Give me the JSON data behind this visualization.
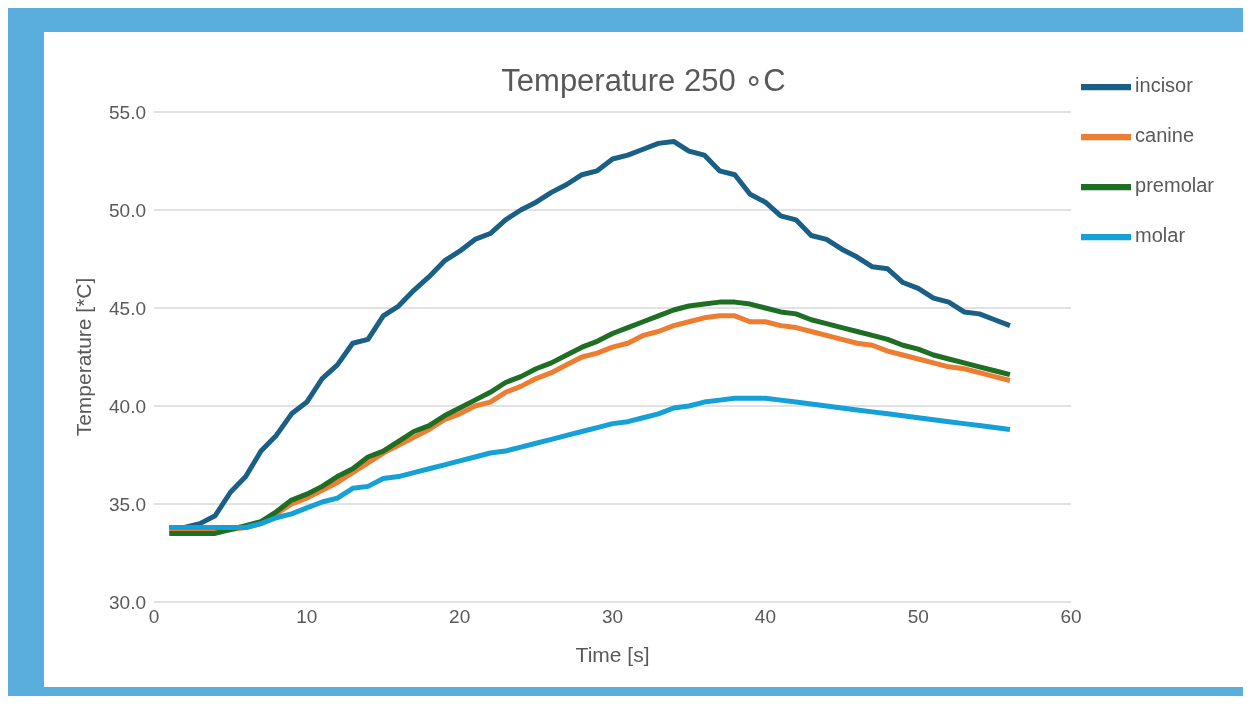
{
  "chart_data": {
    "type": "line",
    "title": "Temperature 250 ∘C",
    "xlabel": "Time [s]",
    "ylabel": "Temperature [*C]",
    "x": [
      1,
      2,
      3,
      4,
      5,
      6,
      7,
      8,
      9,
      10,
      11,
      12,
      13,
      14,
      15,
      16,
      17,
      18,
      19,
      20,
      21,
      22,
      23,
      24,
      25,
      26,
      27,
      28,
      29,
      30,
      31,
      32,
      33,
      34,
      35,
      36,
      37,
      38,
      39,
      40,
      41,
      42,
      43,
      44,
      45,
      46,
      47,
      48,
      49,
      50,
      51,
      52,
      53,
      54,
      55,
      56
    ],
    "series": [
      {
        "name": "incisor",
        "color": "#1a5f85",
        "values": [
          33.8,
          33.8,
          34.0,
          34.4,
          35.6,
          36.4,
          37.7,
          38.5,
          39.6,
          40.2,
          41.4,
          42.1,
          43.2,
          43.4,
          44.6,
          45.1,
          45.9,
          46.6,
          47.4,
          47.9,
          48.5,
          48.8,
          49.5,
          50.0,
          50.4,
          50.9,
          51.3,
          51.8,
          52.0,
          52.6,
          52.8,
          53.1,
          53.4,
          53.5,
          53.0,
          52.8,
          52.0,
          51.8,
          50.8,
          50.4,
          49.7,
          49.5,
          48.7,
          48.5,
          48.0,
          47.6,
          47.1,
          47.0,
          46.3,
          46.0,
          45.5,
          45.3,
          44.8,
          44.7,
          44.4,
          44.1
        ]
      },
      {
        "name": "canine",
        "color": "#ed7d31",
        "values": [
          33.6,
          33.6,
          33.6,
          33.6,
          33.7,
          33.8,
          34.0,
          34.5,
          35.0,
          35.3,
          35.7,
          36.1,
          36.6,
          37.1,
          37.6,
          38.0,
          38.4,
          38.8,
          39.3,
          39.6,
          40.0,
          40.2,
          40.7,
          41.0,
          41.4,
          41.7,
          42.1,
          42.5,
          42.7,
          43.0,
          43.2,
          43.6,
          43.8,
          44.1,
          44.3,
          44.5,
          44.6,
          44.6,
          44.3,
          44.3,
          44.1,
          44.0,
          43.8,
          43.6,
          43.4,
          43.2,
          43.1,
          42.8,
          42.6,
          42.4,
          42.2,
          42.0,
          41.9,
          41.7,
          41.5,
          41.3
        ]
      },
      {
        "name": "premolar",
        "color": "#1e6e24",
        "values": [
          33.5,
          33.5,
          33.5,
          33.5,
          33.7,
          33.9,
          34.1,
          34.6,
          35.2,
          35.5,
          35.9,
          36.4,
          36.8,
          37.4,
          37.7,
          38.2,
          38.7,
          39.0,
          39.5,
          39.9,
          40.3,
          40.7,
          41.2,
          41.5,
          41.9,
          42.2,
          42.6,
          43.0,
          43.3,
          43.7,
          44.0,
          44.3,
          44.6,
          44.9,
          45.1,
          45.2,
          45.3,
          45.3,
          45.2,
          45.0,
          44.8,
          44.7,
          44.4,
          44.2,
          44.0,
          43.8,
          43.6,
          43.4,
          43.1,
          42.9,
          42.6,
          42.4,
          42.2,
          42.0,
          41.8,
          41.6
        ]
      },
      {
        "name": "molar",
        "color": "#16a0d8",
        "values": [
          33.8,
          33.8,
          33.8,
          33.8,
          33.8,
          33.8,
          34.0,
          34.3,
          34.5,
          34.8,
          35.1,
          35.3,
          35.8,
          35.9,
          36.3,
          36.4,
          36.6,
          36.8,
          37.0,
          37.2,
          37.4,
          37.6,
          37.7,
          37.9,
          38.1,
          38.3,
          38.5,
          38.7,
          38.9,
          39.1,
          39.2,
          39.4,
          39.6,
          39.9,
          40.0,
          40.2,
          40.3,
          40.4,
          40.4,
          40.4,
          40.3,
          40.2,
          40.1,
          40.0,
          39.9,
          39.8,
          39.7,
          39.6,
          39.5,
          39.4,
          39.3,
          39.2,
          39.1,
          39.0,
          38.9,
          38.8
        ]
      }
    ],
    "xlim": [
      0,
      60
    ],
    "xticks": [
      0,
      10,
      20,
      30,
      40,
      50,
      60
    ],
    "ylim": [
      30,
      55
    ],
    "yticks": [
      {
        "value": 30,
        "label": "30.0"
      },
      {
        "value": 35,
        "label": "35.0"
      },
      {
        "value": 40,
        "label": "40.0"
      },
      {
        "value": 45,
        "label": "45.0"
      },
      {
        "value": 50,
        "label": "50.0"
      },
      {
        "value": 55,
        "label": "55.0"
      }
    ],
    "grid": "y",
    "legend": "top right",
    "marker": "none",
    "line_style": "solid"
  }
}
